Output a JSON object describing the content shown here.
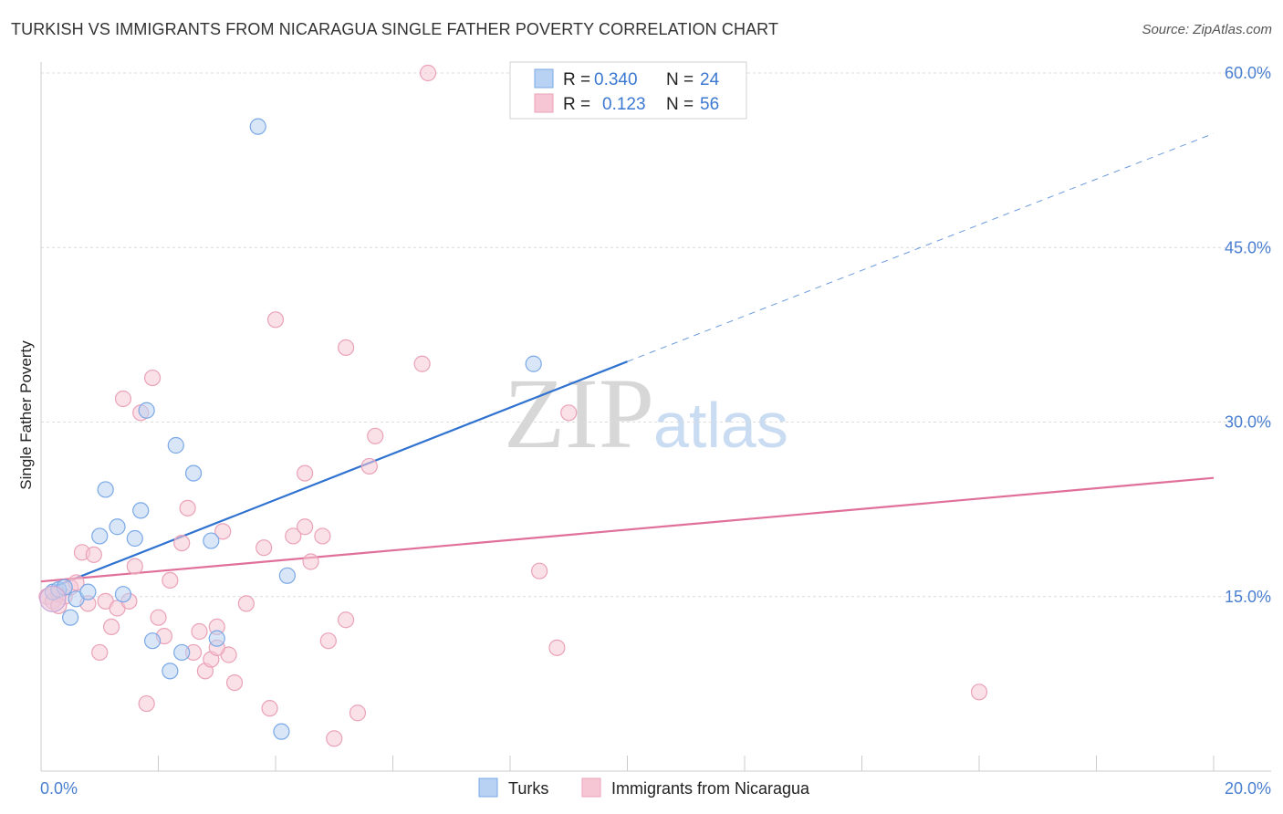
{
  "title": "TURKISH VS IMMIGRANTS FROM NICARAGUA SINGLE FATHER POVERTY CORRELATION CHART",
  "source": "Source: ZipAtlas.com",
  "watermark": {
    "zip": "ZIP",
    "atlas": "atlas"
  },
  "chart_data": {
    "type": "scatter",
    "ylabel": "Single Father Poverty",
    "xlabel": "",
    "xlim": [
      0,
      20
    ],
    "ylim": [
      0,
      60
    ],
    "x_tick_labels": [
      "0.0%",
      "20.0%"
    ],
    "y_ticks": [
      15,
      30,
      45,
      60
    ],
    "y_tick_labels": [
      "15.0%",
      "30.0%",
      "45.0%",
      "60.0%"
    ],
    "legend_top": [
      {
        "r_label": "R =",
        "r_value": "0.340",
        "n_label": "N =",
        "n_value": "24"
      },
      {
        "r_label": "R =",
        "r_value": "0.123",
        "n_label": "N =",
        "n_value": "56"
      }
    ],
    "series": [
      {
        "name": "Turks",
        "color": "#7aa8e6",
        "fill": "#b8d2f3",
        "line_color": "#2f72d0",
        "trend": {
          "x0": 0.2,
          "y0": 15.8,
          "x1": 10,
          "y1": 35.2,
          "dash_to_x": 20,
          "dash_to_y": 54.8
        },
        "points": [
          [
            0.2,
            15.4
          ],
          [
            0.3,
            15.6
          ],
          [
            0.4,
            15.8
          ],
          [
            0.5,
            13.2
          ],
          [
            0.6,
            14.8
          ],
          [
            0.8,
            15.4
          ],
          [
            1.0,
            20.2
          ],
          [
            1.1,
            24.2
          ],
          [
            1.3,
            21.0
          ],
          [
            1.4,
            15.2
          ],
          [
            1.6,
            20.0
          ],
          [
            1.7,
            22.4
          ],
          [
            1.8,
            31.0
          ],
          [
            1.9,
            11.2
          ],
          [
            2.2,
            8.6
          ],
          [
            2.3,
            28.0
          ],
          [
            2.4,
            10.2
          ],
          [
            2.6,
            25.6
          ],
          [
            2.9,
            19.8
          ],
          [
            3.0,
            11.4
          ],
          [
            3.7,
            55.4
          ],
          [
            4.1,
            3.4
          ],
          [
            4.2,
            16.8
          ],
          [
            8.4,
            35.0
          ]
        ]
      },
      {
        "name": "Immigrants from Nicaragua",
        "color": "#eaa2b8",
        "fill": "#f6c6d4",
        "line_color": "#e0709a",
        "trend": {
          "x0": 0,
          "y0": 16.3,
          "x1": 20,
          "y1": 25.2
        },
        "points": [
          [
            0.1,
            15.0
          ],
          [
            0.2,
            14.6
          ],
          [
            0.3,
            15.2
          ],
          [
            0.4,
            15.0
          ],
          [
            0.5,
            15.8
          ],
          [
            0.6,
            16.2
          ],
          [
            0.7,
            18.8
          ],
          [
            0.8,
            14.4
          ],
          [
            0.9,
            18.6
          ],
          [
            1.0,
            10.2
          ],
          [
            1.1,
            14.6
          ],
          [
            1.2,
            12.4
          ],
          [
            1.3,
            14.0
          ],
          [
            1.4,
            32.0
          ],
          [
            1.6,
            17.6
          ],
          [
            1.7,
            30.8
          ],
          [
            1.8,
            5.8
          ],
          [
            1.9,
            33.8
          ],
          [
            2.0,
            13.2
          ],
          [
            2.1,
            11.6
          ],
          [
            2.2,
            16.4
          ],
          [
            2.4,
            19.6
          ],
          [
            2.5,
            22.6
          ],
          [
            2.6,
            10.2
          ],
          [
            2.7,
            12.0
          ],
          [
            2.8,
            8.6
          ],
          [
            2.9,
            9.6
          ],
          [
            3.0,
            12.4
          ],
          [
            3.1,
            20.6
          ],
          [
            3.2,
            10.0
          ],
          [
            3.3,
            7.6
          ],
          [
            3.5,
            14.4
          ],
          [
            3.8,
            19.2
          ],
          [
            3.9,
            5.4
          ],
          [
            4.0,
            38.8
          ],
          [
            4.3,
            20.2
          ],
          [
            4.5,
            21.0
          ],
          [
            4.5,
            25.6
          ],
          [
            4.6,
            18.0
          ],
          [
            4.8,
            20.2
          ],
          [
            4.9,
            11.2
          ],
          [
            5.0,
            2.8
          ],
          [
            5.2,
            13.0
          ],
          [
            5.2,
            36.4
          ],
          [
            5.4,
            5.0
          ],
          [
            5.6,
            26.2
          ],
          [
            5.7,
            28.8
          ],
          [
            6.5,
            35.0
          ],
          [
            6.6,
            60.0
          ],
          [
            8.5,
            17.2
          ],
          [
            8.8,
            10.6
          ],
          [
            9.0,
            30.8
          ],
          [
            16.0,
            6.8
          ],
          [
            0.3,
            14.2
          ],
          [
            1.5,
            14.6
          ],
          [
            3.0,
            10.6
          ]
        ]
      }
    ]
  }
}
